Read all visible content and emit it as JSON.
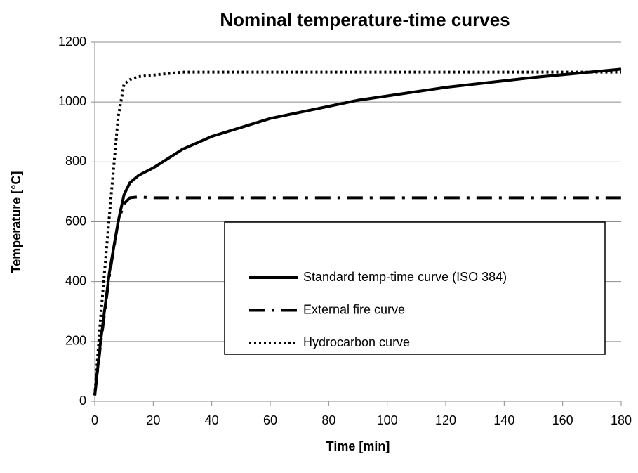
{
  "chart_data": {
    "type": "line",
    "title": "Nominal temperature-time curves",
    "xlabel": "Time [min]",
    "ylabel": "Temperature [°C]",
    "xlim": [
      0,
      180
    ],
    "xticks": [
      0,
      20,
      40,
      60,
      80,
      100,
      120,
      140,
      160,
      180
    ],
    "ylim": [
      0,
      1200
    ],
    "yticks": [
      0,
      200,
      400,
      600,
      800,
      1000,
      1200
    ],
    "grid": true,
    "legend": "lower right",
    "series": [
      {
        "name": "Standard temp-time curve (ISO 384)",
        "color": "#000000",
        "dash": "solid",
        "x": [
          0,
          2,
          5,
          8,
          10,
          12,
          15,
          20,
          30,
          40,
          60,
          90,
          120,
          150,
          180
        ],
        "values": [
          20,
          200,
          430,
          600,
          690,
          730,
          755,
          780,
          842,
          885,
          945,
          1006,
          1049,
          1082,
          1110
        ]
      },
      {
        "name": "External fire curve",
        "color": "#000000",
        "dash": "dashdot",
        "x": [
          0,
          2,
          5,
          8,
          10,
          12,
          15,
          20,
          180
        ],
        "values": [
          20,
          190,
          420,
          600,
          660,
          680,
          683,
          680,
          680
        ]
      },
      {
        "name": "Hydrocarbon curve",
        "color": "#000000",
        "dash": "dotted",
        "x": [
          0,
          2,
          5,
          8,
          10,
          12,
          15,
          20,
          30,
          180
        ],
        "values": [
          20,
          280,
          620,
          950,
          1060,
          1075,
          1085,
          1090,
          1100,
          1100
        ]
      }
    ]
  }
}
